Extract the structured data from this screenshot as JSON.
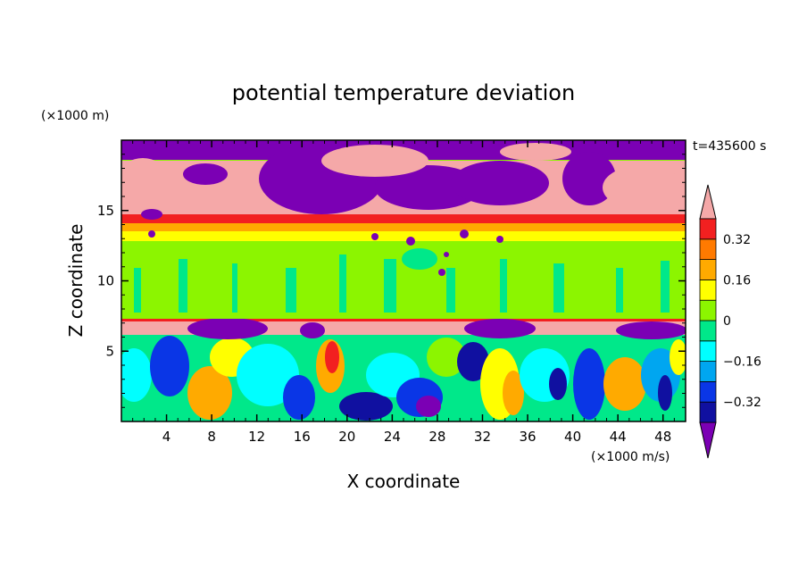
{
  "chart_data": {
    "type": "heatmap",
    "title": "potential temperature deviation",
    "xlabel": "X coordinate",
    "ylabel": "Z coordinate",
    "x_unit": "(×1000 m/s)",
    "y_unit": "(×1000 m)",
    "time_label": "t=435600 s",
    "xlim": [
      0,
      50
    ],
    "ylim": [
      0,
      20
    ],
    "xticks": [
      4,
      8,
      12,
      16,
      20,
      24,
      28,
      32,
      36,
      40,
      44,
      48
    ],
    "yticks": [
      5,
      10,
      15
    ],
    "colorbar": {
      "levels": [
        -0.4,
        -0.32,
        -0.24,
        -0.16,
        -0.08,
        0,
        0.08,
        0.16,
        0.24,
        0.32,
        0.4
      ],
      "labeled_ticks": [
        0.32,
        0.16,
        0,
        -0.16,
        -0.32
      ],
      "colors": [
        "#7b00b4",
        "#1010a0",
        "#0a36e6",
        "#00a6f0",
        "#00ffff",
        "#00e88a",
        "#8cf500",
        "#ffff00",
        "#ffaa00",
        "#ff7a00",
        "#f22020",
        "#f5a8a8"
      ],
      "extend": "both"
    },
    "bands": [
      {
        "z_range": [
          16,
          20
        ],
        "description_value": "mix of 0.4+ and -0.4-"
      },
      {
        "z_range": [
          14,
          15
        ],
        "description_value": 0.32
      },
      {
        "z_range": [
          13,
          14
        ],
        "description_value": 0.2
      },
      {
        "z_range": [
          7.5,
          13
        ],
        "description_value": 0.04
      },
      {
        "z_range": [
          6.5,
          7.5
        ],
        "description_value": 0.45
      },
      {
        "z_range": [
          0,
          6.5
        ],
        "description_value": "turbulent mix"
      }
    ],
    "grid": false,
    "legend_position": "right"
  }
}
